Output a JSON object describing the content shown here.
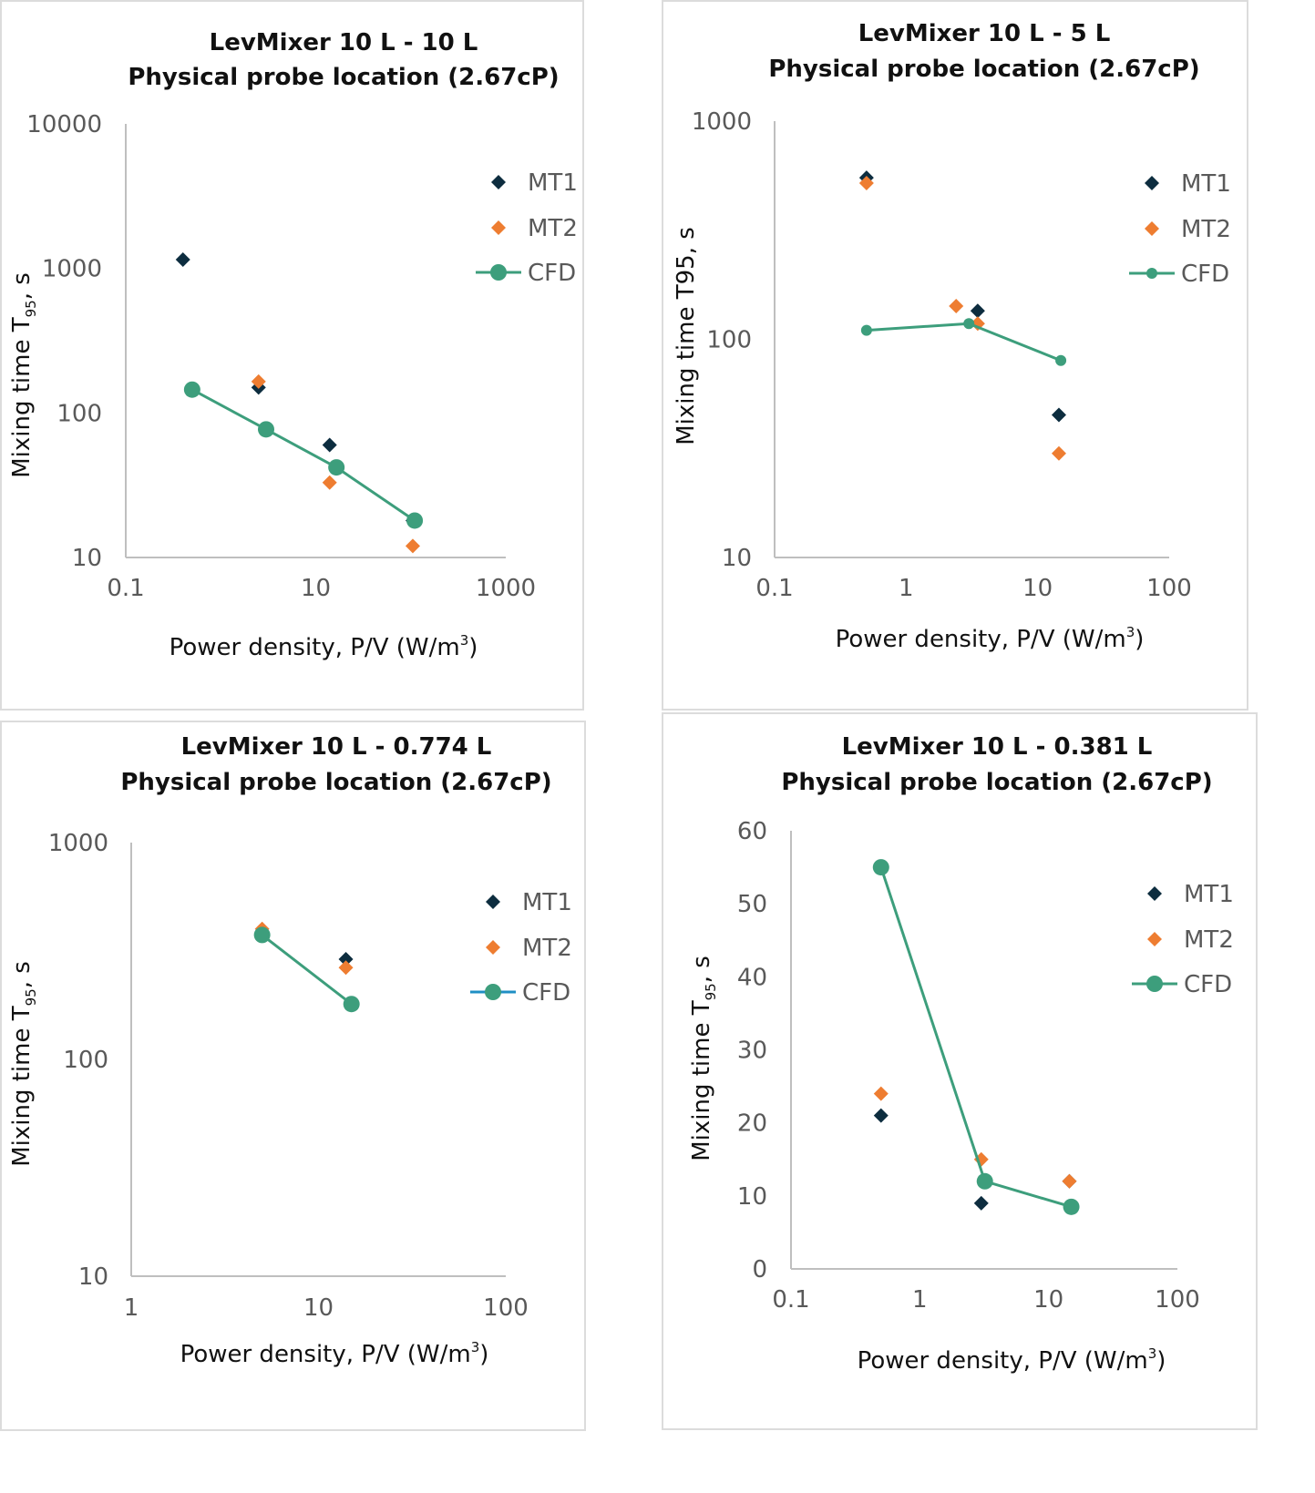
{
  "colors": {
    "MT1": "#0d2d3f",
    "MT2": "#ee7d31",
    "CFD": "#3d9e7c",
    "CFD_legend_alt": "#1f8fc4",
    "axis": "#bfbfbf"
  },
  "chart_data": [
    {
      "type": "scatter",
      "title": [
        "LevMixer 10 L - 10 L",
        "Physical probe location (2.67cP)"
      ],
      "xlabel": "Power density, P/V (W/m",
      "xlabel_sup": "3",
      "xlabel_end": ")",
      "ylabel": "Mixing time T",
      "ylabel_sub": "95",
      "ylabel_end": ", s",
      "xscale": "log",
      "yscale": "log",
      "xlim": [
        0.1,
        1000
      ],
      "ylim": [
        10,
        10000
      ],
      "xticks": [
        "0.1",
        "10",
        "1000"
      ],
      "yticks": [
        "10",
        "100",
        "1000",
        "10000"
      ],
      "legend": "right",
      "series": [
        {
          "name": "MT1",
          "marker": "diamond",
          "points": [
            [
              0.4,
              1150
            ],
            [
              2.5,
              150
            ],
            [
              14,
              60
            ],
            [
              105,
              18
            ]
          ]
        },
        {
          "name": "MT2",
          "marker": "diamond",
          "points": [
            [
              2.5,
              165
            ],
            [
              14,
              33
            ],
            [
              105,
              12
            ]
          ]
        },
        {
          "name": "CFD",
          "marker": "circle-line",
          "points": [
            [
              0.5,
              145
            ],
            [
              3,
              77
            ],
            [
              16.5,
              42
            ],
            [
              110,
              18
            ]
          ]
        }
      ]
    },
    {
      "type": "scatter",
      "title": [
        "LevMixer 10 L - 5 L",
        "Physical probe location (2.67cP)"
      ],
      "xlabel": "Power density, P/V (W/m",
      "xlabel_sup": "3",
      "xlabel_end": ")",
      "ylabel": "Mixing time T95, s",
      "ylabel_sub": "",
      "ylabel_end": "",
      "xscale": "log",
      "yscale": "log",
      "xlim": [
        0.1,
        100
      ],
      "ylim": [
        10,
        1000
      ],
      "xticks": [
        "0.1",
        "1",
        "10",
        "100"
      ],
      "yticks": [
        "10",
        "100",
        "1000"
      ],
      "legend": "right",
      "series": [
        {
          "name": "MT1",
          "marker": "diamond",
          "points": [
            [
              0.5,
              550
            ],
            [
              3.5,
              135
            ],
            [
              14.5,
              45
            ]
          ]
        },
        {
          "name": "MT2",
          "marker": "diamond",
          "points": [
            [
              0.5,
              520
            ],
            [
              2.4,
              142
            ],
            [
              3.5,
              118
            ],
            [
              14.5,
              30
            ]
          ]
        },
        {
          "name": "CFD",
          "marker": "small-circle-line",
          "points": [
            [
              0.5,
              110
            ],
            [
              3,
              118
            ],
            [
              15,
              80
            ]
          ]
        }
      ]
    },
    {
      "type": "scatter",
      "title": [
        "LevMixer 10 L - 0.774 L",
        "Physical probe location (2.67cP)"
      ],
      "xlabel": "Power density, P/V (W/m",
      "xlabel_sup": "3",
      "xlabel_end": ")",
      "ylabel": "Mixing time T",
      "ylabel_sub": "95",
      "ylabel_end": ", s",
      "xscale": "log",
      "yscale": "log",
      "xlim": [
        1,
        100
      ],
      "ylim": [
        10,
        1000
      ],
      "xticks": [
        "1",
        "10",
        "100"
      ],
      "yticks": [
        "10",
        "100",
        "1000"
      ],
      "legend": "right",
      "series": [
        {
          "name": "MT1",
          "marker": "diamond",
          "points": [
            [
              5,
              375
            ],
            [
              14,
              290
            ]
          ]
        },
        {
          "name": "MT2",
          "marker": "diamond",
          "points": [
            [
              5,
              400
            ],
            [
              14,
              265
            ]
          ]
        },
        {
          "name": "CFD",
          "marker": "circle-line",
          "points": [
            [
              5,
              375
            ],
            [
              15,
              180
            ]
          ]
        }
      ]
    },
    {
      "type": "scatter",
      "title": [
        "LevMixer 10 L - 0.381 L",
        "Physical probe location (2.67cP)"
      ],
      "xlabel": "Power density, P/V (W/m",
      "xlabel_sup": "3",
      "xlabel_end": ")",
      "ylabel": "Mixing time T",
      "ylabel_sub": "95",
      "ylabel_end": ", s",
      "xscale": "log",
      "yscale": "linear",
      "xlim": [
        0.1,
        100
      ],
      "ylim": [
        0,
        60
      ],
      "xticks": [
        "0.1",
        "1",
        "10",
        "100"
      ],
      "yticks": [
        "0",
        "10",
        "20",
        "30",
        "40",
        "50",
        "60"
      ],
      "legend": "right",
      "series": [
        {
          "name": "MT1",
          "marker": "diamond",
          "points": [
            [
              0.5,
              21
            ],
            [
              3,
              9
            ],
            [
              14.5,
              12
            ]
          ]
        },
        {
          "name": "MT2",
          "marker": "diamond",
          "points": [
            [
              0.5,
              24
            ],
            [
              3,
              15
            ],
            [
              14.5,
              12
            ]
          ]
        },
        {
          "name": "CFD",
          "marker": "circle-line",
          "points": [
            [
              0.5,
              55
            ],
            [
              3.2,
              12
            ],
            [
              15,
              8.5
            ]
          ]
        }
      ]
    }
  ]
}
